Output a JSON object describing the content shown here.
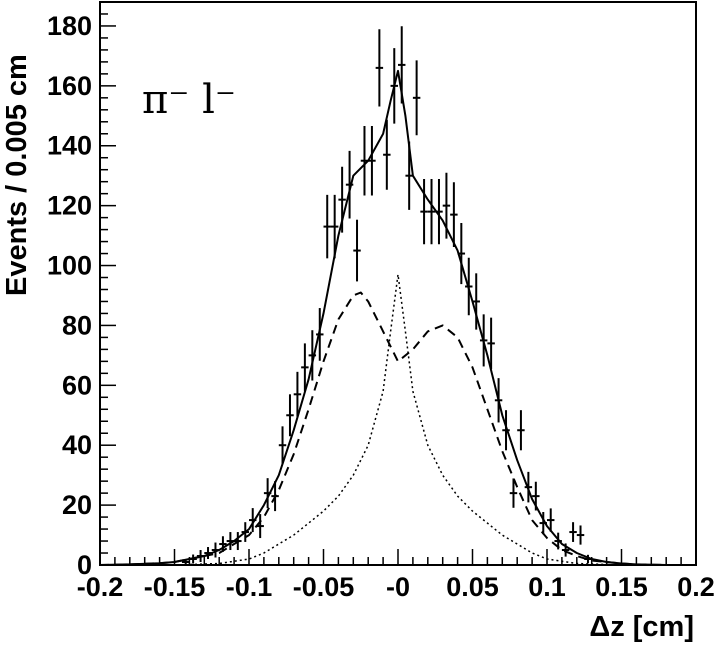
{
  "chart_data": {
    "type": "line",
    "xlabel": "Δz [cm]",
    "ylabel": "Events / 0.005 cm",
    "annotation": "π⁻ l⁻",
    "xlim": [
      -0.2,
      0.2
    ],
    "ylim": [
      0,
      188
    ],
    "x_ticks": [
      -0.2,
      -0.15,
      -0.1,
      -0.05,
      0,
      0.05,
      0.1,
      0.15,
      0.2
    ],
    "x_tick_labels": [
      "-0.2",
      "-0.15",
      "-0.1",
      "-0.05",
      "-0",
      "0.05",
      "0.1",
      "0.15",
      "0.2"
    ],
    "y_ticks": [
      0,
      20,
      40,
      60,
      80,
      100,
      120,
      140,
      160,
      180
    ],
    "y_tick_labels": [
      "0",
      "20",
      "40",
      "60",
      "80",
      "100",
      "120",
      "140",
      "160",
      "180"
    ],
    "grid": false,
    "colors": {
      "line": "#000000",
      "background": "#ffffff"
    },
    "points": [
      {
        "x": -0.1425,
        "y": 1,
        "err": 1
      },
      {
        "x": -0.1375,
        "y": 2,
        "err": 1.5
      },
      {
        "x": -0.1325,
        "y": 3,
        "err": 2
      },
      {
        "x": -0.1275,
        "y": 4,
        "err": 2
      },
      {
        "x": -0.1225,
        "y": 5,
        "err": 2.5
      },
      {
        "x": -0.1175,
        "y": 7,
        "err": 2.6
      },
      {
        "x": -0.1125,
        "y": 8,
        "err": 3
      },
      {
        "x": -0.1075,
        "y": 8,
        "err": 3
      },
      {
        "x": -0.1025,
        "y": 11,
        "err": 3.3
      },
      {
        "x": -0.0975,
        "y": 15,
        "err": 4
      },
      {
        "x": -0.0925,
        "y": 13,
        "err": 4
      },
      {
        "x": -0.0875,
        "y": 24,
        "err": 5
      },
      {
        "x": -0.0825,
        "y": 23,
        "err": 5
      },
      {
        "x": -0.0775,
        "y": 40,
        "err": 6.3
      },
      {
        "x": -0.0725,
        "y": 50,
        "err": 7
      },
      {
        "x": -0.0675,
        "y": 57,
        "err": 7.5
      },
      {
        "x": -0.0625,
        "y": 66,
        "err": 8
      },
      {
        "x": -0.0575,
        "y": 70,
        "err": 8.4
      },
      {
        "x": -0.0525,
        "y": 77,
        "err": 8.8
      },
      {
        "x": -0.0475,
        "y": 113,
        "err": 10.6
      },
      {
        "x": -0.0425,
        "y": 113,
        "err": 10.6
      },
      {
        "x": -0.0375,
        "y": 122,
        "err": 11
      },
      {
        "x": -0.0325,
        "y": 127,
        "err": 11.3
      },
      {
        "x": -0.0275,
        "y": 105,
        "err": 10.3
      },
      {
        "x": -0.0225,
        "y": 135,
        "err": 11.6
      },
      {
        "x": -0.0175,
        "y": 135,
        "err": 11.6
      },
      {
        "x": -0.0125,
        "y": 166,
        "err": 12.9
      },
      {
        "x": -0.0075,
        "y": 137,
        "err": 11.7
      },
      {
        "x": -0.0025,
        "y": 160,
        "err": 12.6
      },
      {
        "x": 0.0025,
        "y": 167,
        "err": 12.9
      },
      {
        "x": 0.0075,
        "y": 130,
        "err": 11.4
      },
      {
        "x": 0.0125,
        "y": 156,
        "err": 12.5
      },
      {
        "x": 0.0175,
        "y": 118,
        "err": 10.9
      },
      {
        "x": 0.0225,
        "y": 118,
        "err": 10.9
      },
      {
        "x": 0.0275,
        "y": 118,
        "err": 10.9
      },
      {
        "x": 0.0325,
        "y": 120,
        "err": 11
      },
      {
        "x": 0.0375,
        "y": 117,
        "err": 10.8
      },
      {
        "x": 0.0425,
        "y": 104,
        "err": 10.2
      },
      {
        "x": 0.0475,
        "y": 93,
        "err": 9.6
      },
      {
        "x": 0.0525,
        "y": 88,
        "err": 9.4
      },
      {
        "x": 0.0575,
        "y": 75,
        "err": 8.7
      },
      {
        "x": 0.0625,
        "y": 74,
        "err": 8.6
      },
      {
        "x": 0.0675,
        "y": 55,
        "err": 7.4
      },
      {
        "x": 0.0725,
        "y": 45,
        "err": 6.7
      },
      {
        "x": 0.0775,
        "y": 24,
        "err": 4.9
      },
      {
        "x": 0.0825,
        "y": 45,
        "err": 6.7
      },
      {
        "x": 0.0875,
        "y": 26,
        "err": 5.1
      },
      {
        "x": 0.0925,
        "y": 23,
        "err": 4.8
      },
      {
        "x": 0.0975,
        "y": 14,
        "err": 3.7
      },
      {
        "x": 0.1025,
        "y": 15,
        "err": 3.9
      },
      {
        "x": 0.1075,
        "y": 8,
        "err": 2.8
      },
      {
        "x": 0.1125,
        "y": 5,
        "err": 2.2
      },
      {
        "x": 0.1175,
        "y": 11,
        "err": 3.3
      },
      {
        "x": 0.1225,
        "y": 10,
        "err": 3.2
      },
      {
        "x": 0.1275,
        "y": 2,
        "err": 1.4
      }
    ],
    "series": [
      {
        "style": "solid",
        "x": [
          -0.2,
          -0.18,
          -0.16,
          -0.15,
          -0.14,
          -0.13,
          -0.12,
          -0.11,
          -0.1,
          -0.09,
          -0.08,
          -0.07,
          -0.06,
          -0.05,
          -0.04,
          -0.03,
          -0.02,
          -0.01,
          -0.005,
          0,
          0.005,
          0.01,
          0.02,
          0.03,
          0.04,
          0.05,
          0.06,
          0.07,
          0.08,
          0.09,
          0.1,
          0.11,
          0.12,
          0.13,
          0.14,
          0.15,
          0.16,
          0.18,
          0.2
        ],
        "y": [
          0,
          0.2,
          0.6,
          1,
          2,
          3,
          5,
          8,
          12,
          20,
          30,
          45,
          62,
          84,
          110,
          130,
          135,
          144,
          155,
          165,
          150,
          130,
          122,
          115,
          105,
          88,
          70,
          50,
          35,
          22,
          13,
          7,
          4,
          2,
          1,
          0.5,
          0.2,
          0,
          0
        ]
      },
      {
        "style": "dashed",
        "x": [
          -0.2,
          -0.18,
          -0.16,
          -0.15,
          -0.14,
          -0.13,
          -0.12,
          -0.11,
          -0.1,
          -0.09,
          -0.08,
          -0.07,
          -0.06,
          -0.05,
          -0.04,
          -0.03,
          -0.025,
          -0.02,
          -0.01,
          0,
          0.01,
          0.02,
          0.03,
          0.04,
          0.05,
          0.06,
          0.07,
          0.08,
          0.09,
          0.1,
          0.11,
          0.12,
          0.13,
          0.14,
          0.15,
          0.16,
          0.18,
          0.2
        ],
        "y": [
          0,
          0.2,
          0.6,
          1,
          2,
          3,
          4,
          7,
          10,
          16,
          25,
          37,
          52,
          68,
          82,
          90,
          91,
          88,
          78,
          68,
          72,
          78,
          80,
          76,
          66,
          52,
          38,
          26,
          15,
          9,
          5,
          3,
          1.5,
          1,
          0.5,
          0.2,
          0,
          0
        ]
      },
      {
        "style": "dotted",
        "x": [
          -0.2,
          -0.15,
          -0.12,
          -0.1,
          -0.09,
          -0.08,
          -0.07,
          -0.06,
          -0.05,
          -0.04,
          -0.03,
          -0.02,
          -0.01,
          -0.005,
          0,
          0.005,
          0.01,
          0.02,
          0.03,
          0.04,
          0.05,
          0.06,
          0.07,
          0.08,
          0.09,
          0.1,
          0.12,
          0.15,
          0.2
        ],
        "y": [
          0,
          0,
          0.5,
          2,
          4,
          7,
          10,
          14,
          18,
          23,
          30,
          40,
          58,
          78,
          97,
          78,
          58,
          40,
          30,
          23,
          18,
          14,
          10,
          7,
          4,
          2,
          0.5,
          0,
          0
        ]
      }
    ]
  }
}
